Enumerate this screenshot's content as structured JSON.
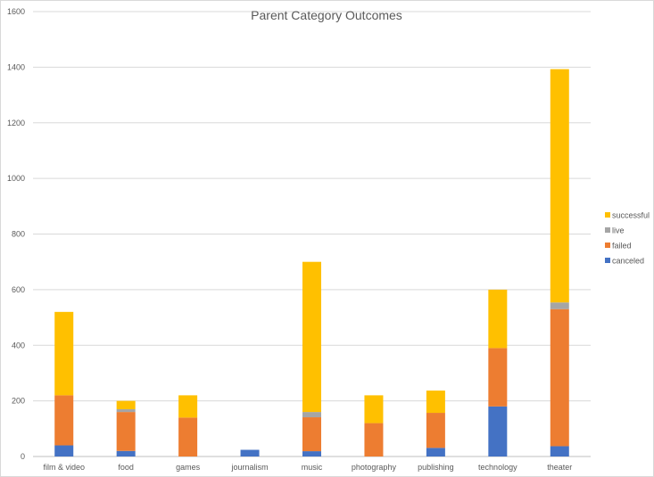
{
  "chart_data": {
    "type": "bar",
    "stacked": true,
    "title": "Parent Category Outcomes",
    "xlabel": "",
    "ylabel": "",
    "ylim": [
      0,
      1600
    ],
    "yticks": [
      0,
      200,
      400,
      600,
      800,
      1000,
      1200,
      1400,
      1600
    ],
    "grid": true,
    "legend_position": "right",
    "categories": [
      "film & video",
      "food",
      "games",
      "journalism",
      "music",
      "photography",
      "publishing",
      "technology",
      "theater"
    ],
    "series": [
      {
        "name": "canceled",
        "color": "#4472c4",
        "values": [
          40,
          20,
          0,
          24,
          19,
          0,
          31,
          180,
          37
        ]
      },
      {
        "name": "failed",
        "color": "#ed7d31",
        "values": [
          180,
          140,
          140,
          0,
          122,
          120,
          126,
          210,
          493
        ]
      },
      {
        "name": "live",
        "color": "#a5a5a5",
        "values": [
          0,
          10,
          0,
          0,
          19,
          0,
          0,
          0,
          24
        ]
      },
      {
        "name": "successful",
        "color": "#ffc000",
        "values": [
          300,
          30,
          80,
          0,
          540,
          100,
          80,
          210,
          839
        ]
      }
    ],
    "legend_order": [
      "successful",
      "live",
      "failed",
      "canceled"
    ]
  }
}
